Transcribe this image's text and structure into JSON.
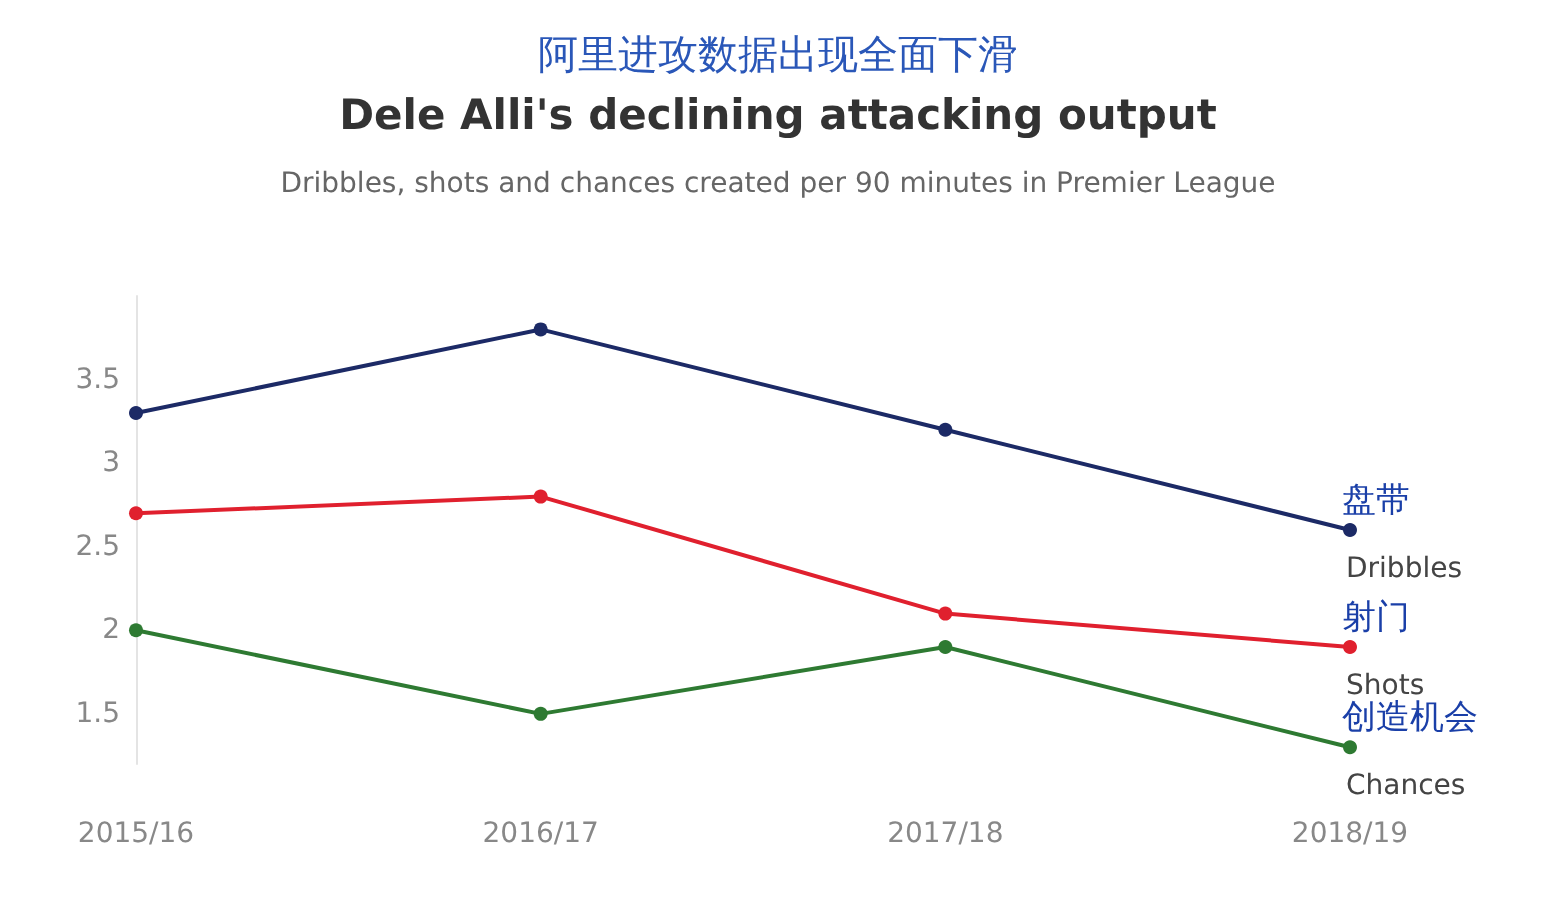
{
  "chart_data": {
    "type": "line",
    "title": "阿里进攻数据出现全面下滑",
    "subtitle": "Dele Alli's declining attacking output",
    "annotations": [
      "Dribbles, shots and chances created per 90 minutes in Premier League",
      {
        "text": "盘带",
        "x": "2018/19",
        "y": 2.6
      },
      {
        "text": "射门",
        "x": "2018/19",
        "y": 1.9
      },
      {
        "text": "创造机会",
        "x": "2018/19",
        "y": 1.3
      }
    ],
    "categories": [
      "2015/16",
      "2016/17",
      "2017/18",
      "2018/19"
    ],
    "series": [
      {
        "name": "Dribbles",
        "color": "#1c2a66",
        "values": [
          3.3,
          3.8,
          3.2,
          2.6
        ]
      },
      {
        "name": "Shots",
        "color": "#e0202e",
        "values": [
          2.7,
          2.8,
          2.1,
          1.9
        ]
      },
      {
        "name": "Chances",
        "color": "#2e7a32",
        "values": [
          2.0,
          1.5,
          1.9,
          1.3
        ]
      }
    ],
    "ylim": [
      1.2,
      4
    ],
    "yticks": [
      1.5,
      2,
      2.5,
      3,
      3.5
    ],
    "grid": false,
    "legend": false,
    "marker": "circle",
    "line_style": "solid"
  }
}
